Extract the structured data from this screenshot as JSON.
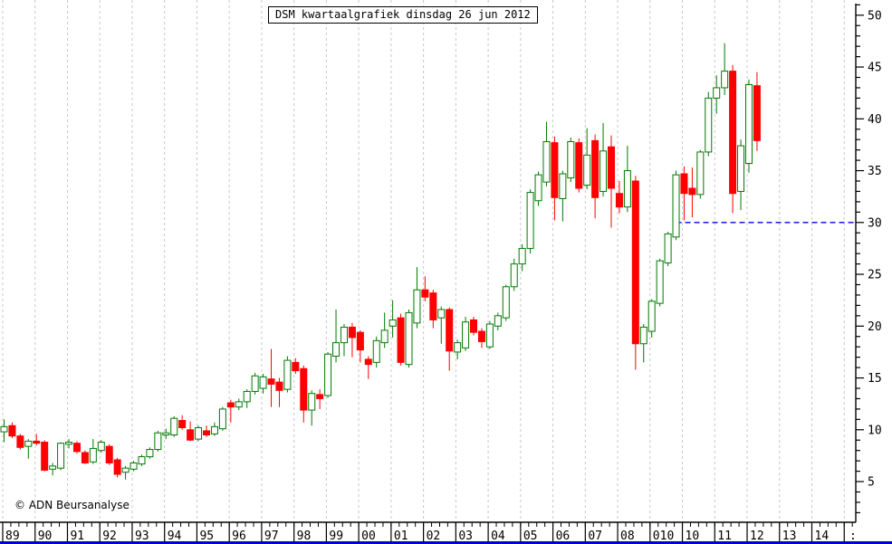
{
  "title": "DSM kwartaalgrafiek dinsdag 26 jun 2012",
  "copyright": "© ADN Beursanalyse",
  "colors": {
    "up": "#007a00",
    "up_fill": "#ffffff",
    "down": "#ff0000",
    "support": "#0000ee",
    "grid": "#c8c8c8",
    "axis": "#000000",
    "background": "#ffffff",
    "bottom_strip": "#0000cc"
  },
  "y_axis": {
    "min": 5,
    "max": 50,
    "major_step": 5,
    "minor_step": 1,
    "labels": [
      "50",
      "45",
      "40",
      "35",
      "30",
      "25",
      "20",
      "15",
      "10",
      "5"
    ],
    "side": "right"
  },
  "x_axis": {
    "year_labels": [
      "89",
      "90",
      "91",
      "92",
      "93",
      "94",
      "95",
      "96",
      "97",
      "98",
      "99",
      "00",
      "01",
      "02",
      "03",
      "04",
      "05",
      "06",
      "07",
      "08",
      "010",
      "10",
      "11",
      "12",
      "13",
      "14"
    ],
    "partial_label": ":"
  },
  "support_line": {
    "value": 30,
    "from_quarter": "2009Q4",
    "style": "dashed"
  },
  "chart_data": {
    "type": "candlestick",
    "title": "DSM kwartaalgrafiek dinsdag 26 jun 2012",
    "interval": "quarterly",
    "ylim": [
      1,
      51
    ],
    "grid": "vertical-dashed-per-year",
    "legend": "none",
    "candles": [
      {
        "q": "1989Q1",
        "o": 9.8,
        "h": 11.0,
        "l": 8.8,
        "c": 10.3
      },
      {
        "q": "1989Q2",
        "o": 10.4,
        "h": 10.7,
        "l": 9.2,
        "c": 9.4
      },
      {
        "q": "1989Q3",
        "o": 9.4,
        "h": 9.6,
        "l": 8.1,
        "c": 8.3
      },
      {
        "q": "1989Q4",
        "o": 8.4,
        "h": 9.1,
        "l": 7.2,
        "c": 8.9
      },
      {
        "q": "1990Q1",
        "o": 8.9,
        "h": 9.6,
        "l": 8.5,
        "c": 8.7
      },
      {
        "q": "1990Q2",
        "o": 8.8,
        "h": 9.0,
        "l": 6.0,
        "c": 6.1
      },
      {
        "q": "1990Q3",
        "o": 6.2,
        "h": 6.8,
        "l": 5.6,
        "c": 6.5
      },
      {
        "q": "1990Q4",
        "o": 6.3,
        "h": 8.8,
        "l": 6.1,
        "c": 8.7
      },
      {
        "q": "1991Q1",
        "o": 8.6,
        "h": 9.1,
        "l": 8.2,
        "c": 8.8
      },
      {
        "q": "1991Q2",
        "o": 8.7,
        "h": 8.9,
        "l": 7.7,
        "c": 7.9
      },
      {
        "q": "1991Q3",
        "o": 7.8,
        "h": 8.0,
        "l": 6.7,
        "c": 6.8
      },
      {
        "q": "1991Q4",
        "o": 6.9,
        "h": 9.1,
        "l": 6.7,
        "c": 8.2
      },
      {
        "q": "1992Q1",
        "o": 8.0,
        "h": 9.0,
        "l": 7.8,
        "c": 8.8
      },
      {
        "q": "1992Q2",
        "o": 8.4,
        "h": 8.6,
        "l": 6.6,
        "c": 6.8
      },
      {
        "q": "1992Q3",
        "o": 7.1,
        "h": 7.3,
        "l": 5.4,
        "c": 5.7
      },
      {
        "q": "1992Q4",
        "o": 5.9,
        "h": 6.5,
        "l": 5.2,
        "c": 6.3
      },
      {
        "q": "1993Q1",
        "o": 6.2,
        "h": 7.0,
        "l": 6.0,
        "c": 6.8
      },
      {
        "q": "1993Q2",
        "o": 6.7,
        "h": 7.6,
        "l": 6.5,
        "c": 7.4
      },
      {
        "q": "1993Q3",
        "o": 7.4,
        "h": 8.3,
        "l": 7.2,
        "c": 8.1
      },
      {
        "q": "1993Q4",
        "o": 8.1,
        "h": 9.9,
        "l": 7.9,
        "c": 9.7
      },
      {
        "q": "1994Q1",
        "o": 9.5,
        "h": 10.1,
        "l": 9.1,
        "c": 9.7
      },
      {
        "q": "1994Q2",
        "o": 9.5,
        "h": 11.3,
        "l": 9.3,
        "c": 11.1
      },
      {
        "q": "1994Q3",
        "o": 10.9,
        "h": 11.4,
        "l": 10.0,
        "c": 10.2
      },
      {
        "q": "1994Q4",
        "o": 10.0,
        "h": 10.8,
        "l": 8.9,
        "c": 9.0
      },
      {
        "q": "1995Q1",
        "o": 9.1,
        "h": 10.4,
        "l": 8.9,
        "c": 10.2
      },
      {
        "q": "1995Q2",
        "o": 9.9,
        "h": 10.4,
        "l": 9.3,
        "c": 9.5
      },
      {
        "q": "1995Q3",
        "o": 9.6,
        "h": 10.7,
        "l": 9.4,
        "c": 10.3
      },
      {
        "q": "1995Q4",
        "o": 10.1,
        "h": 12.2,
        "l": 9.9,
        "c": 12.0
      },
      {
        "q": "1996Q1",
        "o": 12.6,
        "h": 12.9,
        "l": 10.7,
        "c": 12.2
      },
      {
        "q": "1996Q2",
        "o": 12.2,
        "h": 13.0,
        "l": 11.9,
        "c": 12.7
      },
      {
        "q": "1996Q3",
        "o": 12.7,
        "h": 13.9,
        "l": 12.1,
        "c": 13.7
      },
      {
        "q": "1996Q4",
        "o": 13.7,
        "h": 15.5,
        "l": 13.4,
        "c": 15.2
      },
      {
        "q": "1997Q1",
        "o": 14.0,
        "h": 15.4,
        "l": 13.5,
        "c": 15.1
      },
      {
        "q": "1997Q2",
        "o": 14.9,
        "h": 17.8,
        "l": 12.2,
        "c": 14.4
      },
      {
        "q": "1997Q3",
        "o": 14.6,
        "h": 15.0,
        "l": 12.2,
        "c": 13.8
      },
      {
        "q": "1997Q4",
        "o": 13.9,
        "h": 17.1,
        "l": 13.6,
        "c": 16.7
      },
      {
        "q": "1998Q1",
        "o": 16.5,
        "h": 16.9,
        "l": 15.4,
        "c": 15.7
      },
      {
        "q": "1998Q2",
        "o": 15.9,
        "h": 16.2,
        "l": 10.7,
        "c": 11.9
      },
      {
        "q": "1998Q3",
        "o": 11.9,
        "h": 13.8,
        "l": 10.4,
        "c": 13.5
      },
      {
        "q": "1998Q4",
        "o": 13.4,
        "h": 13.9,
        "l": 12.0,
        "c": 13.0
      },
      {
        "q": "1999Q1",
        "o": 13.3,
        "h": 17.5,
        "l": 13.1,
        "c": 17.3
      },
      {
        "q": "1999Q2",
        "o": 17.1,
        "h": 21.6,
        "l": 16.5,
        "c": 18.4
      },
      {
        "q": "1999Q3",
        "o": 18.4,
        "h": 20.2,
        "l": 17.1,
        "c": 19.9
      },
      {
        "q": "1999Q4",
        "o": 19.9,
        "h": 20.3,
        "l": 17.0,
        "c": 18.9
      },
      {
        "q": "2000Q1",
        "o": 19.4,
        "h": 19.6,
        "l": 16.5,
        "c": 17.7
      },
      {
        "q": "2000Q2",
        "o": 16.8,
        "h": 17.1,
        "l": 14.9,
        "c": 16.3
      },
      {
        "q": "2000Q3",
        "o": 16.5,
        "h": 19.0,
        "l": 16.0,
        "c": 18.6
      },
      {
        "q": "2000Q4",
        "o": 18.4,
        "h": 21.3,
        "l": 17.9,
        "c": 19.6
      },
      {
        "q": "2001Q1",
        "o": 20.0,
        "h": 22.5,
        "l": 18.9,
        "c": 20.6
      },
      {
        "q": "2001Q2",
        "o": 20.8,
        "h": 21.2,
        "l": 16.2,
        "c": 16.5
      },
      {
        "q": "2001Q3",
        "o": 16.3,
        "h": 21.6,
        "l": 16.0,
        "c": 21.3
      },
      {
        "q": "2001Q4",
        "o": 20.3,
        "h": 25.7,
        "l": 19.8,
        "c": 23.5
      },
      {
        "q": "2002Q1",
        "o": 23.5,
        "h": 24.8,
        "l": 22.4,
        "c": 22.8
      },
      {
        "q": "2002Q2",
        "o": 23.2,
        "h": 23.5,
        "l": 19.8,
        "c": 20.6
      },
      {
        "q": "2002Q3",
        "o": 20.8,
        "h": 21.9,
        "l": 18.3,
        "c": 21.6
      },
      {
        "q": "2002Q4",
        "o": 21.6,
        "h": 21.8,
        "l": 15.7,
        "c": 17.6
      },
      {
        "q": "2003Q1",
        "o": 17.5,
        "h": 18.7,
        "l": 16.8,
        "c": 18.4
      },
      {
        "q": "2003Q2",
        "o": 17.9,
        "h": 20.9,
        "l": 17.6,
        "c": 20.4
      },
      {
        "q": "2003Q3",
        "o": 20.6,
        "h": 20.9,
        "l": 19.1,
        "c": 19.4
      },
      {
        "q": "2003Q4",
        "o": 19.5,
        "h": 19.8,
        "l": 17.9,
        "c": 18.5
      },
      {
        "q": "2004Q1",
        "o": 18.0,
        "h": 20.5,
        "l": 17.8,
        "c": 20.2
      },
      {
        "q": "2004Q2",
        "o": 20.0,
        "h": 21.3,
        "l": 19.6,
        "c": 21.0
      },
      {
        "q": "2004Q3",
        "o": 20.8,
        "h": 24.0,
        "l": 20.5,
        "c": 23.8
      },
      {
        "q": "2004Q4",
        "o": 23.8,
        "h": 26.5,
        "l": 23.4,
        "c": 26.0
      },
      {
        "q": "2005Q1",
        "o": 26.0,
        "h": 27.9,
        "l": 25.3,
        "c": 27.5
      },
      {
        "q": "2005Q2",
        "o": 27.5,
        "h": 33.2,
        "l": 27.0,
        "c": 32.9
      },
      {
        "q": "2005Q3",
        "o": 32.1,
        "h": 34.9,
        "l": 31.6,
        "c": 34.6
      },
      {
        "q": "2005Q4",
        "o": 33.9,
        "h": 39.7,
        "l": 33.5,
        "c": 37.8
      },
      {
        "q": "2006Q1",
        "o": 37.7,
        "h": 38.3,
        "l": 30.2,
        "c": 32.4
      },
      {
        "q": "2006Q2",
        "o": 32.3,
        "h": 35.0,
        "l": 30.1,
        "c": 34.7
      },
      {
        "q": "2006Q3",
        "o": 34.3,
        "h": 38.2,
        "l": 33.9,
        "c": 37.8
      },
      {
        "q": "2006Q4",
        "o": 37.7,
        "h": 38.1,
        "l": 32.9,
        "c": 33.3
      },
      {
        "q": "2007Q1",
        "o": 33.6,
        "h": 39.1,
        "l": 33.2,
        "c": 36.5
      },
      {
        "q": "2007Q2",
        "o": 37.9,
        "h": 38.5,
        "l": 30.4,
        "c": 32.4
      },
      {
        "q": "2007Q3",
        "o": 33.0,
        "h": 39.6,
        "l": 32.5,
        "c": 36.9
      },
      {
        "q": "2007Q4",
        "o": 37.3,
        "h": 38.4,
        "l": 29.5,
        "c": 33.3
      },
      {
        "q": "2008Q1",
        "o": 32.8,
        "h": 34.0,
        "l": 30.9,
        "c": 31.5
      },
      {
        "q": "2008Q2",
        "o": 31.5,
        "h": 37.4,
        "l": 31.0,
        "c": 35.0
      },
      {
        "q": "2008Q3",
        "o": 34.0,
        "h": 34.5,
        "l": 15.8,
        "c": 18.3
      },
      {
        "q": "2008Q4",
        "o": 18.3,
        "h": 20.2,
        "l": 16.5,
        "c": 19.9
      },
      {
        "q": "2009Q1",
        "o": 19.5,
        "h": 22.6,
        "l": 18.9,
        "c": 22.4
      },
      {
        "q": "2009Q2",
        "o": 22.2,
        "h": 26.5,
        "l": 21.9,
        "c": 26.3
      },
      {
        "q": "2009Q3",
        "o": 26.1,
        "h": 29.1,
        "l": 25.8,
        "c": 28.9
      },
      {
        "q": "2009Q4",
        "o": 28.6,
        "h": 35.0,
        "l": 28.3,
        "c": 34.6
      },
      {
        "q": "2010Q1",
        "o": 34.7,
        "h": 35.4,
        "l": 30.2,
        "c": 32.8
      },
      {
        "q": "2010Q2",
        "o": 33.3,
        "h": 35.3,
        "l": 30.5,
        "c": 32.7
      },
      {
        "q": "2010Q3",
        "o": 32.7,
        "h": 37.0,
        "l": 32.3,
        "c": 36.8
      },
      {
        "q": "2010Q4",
        "o": 36.8,
        "h": 42.6,
        "l": 36.4,
        "c": 42.0
      },
      {
        "q": "2011Q1",
        "o": 42.0,
        "h": 44.2,
        "l": 40.5,
        "c": 43.0
      },
      {
        "q": "2011Q2",
        "o": 43.0,
        "h": 47.3,
        "l": 42.3,
        "c": 44.6
      },
      {
        "q": "2011Q3",
        "o": 44.6,
        "h": 45.2,
        "l": 30.9,
        "c": 32.8
      },
      {
        "q": "2011Q4",
        "o": 33.0,
        "h": 38.0,
        "l": 31.2,
        "c": 37.4
      },
      {
        "q": "2012Q1",
        "o": 35.7,
        "h": 43.8,
        "l": 34.8,
        "c": 43.3
      },
      {
        "q": "2012Q2",
        "o": 43.2,
        "h": 44.5,
        "l": 36.9,
        "c": 37.9
      }
    ]
  }
}
